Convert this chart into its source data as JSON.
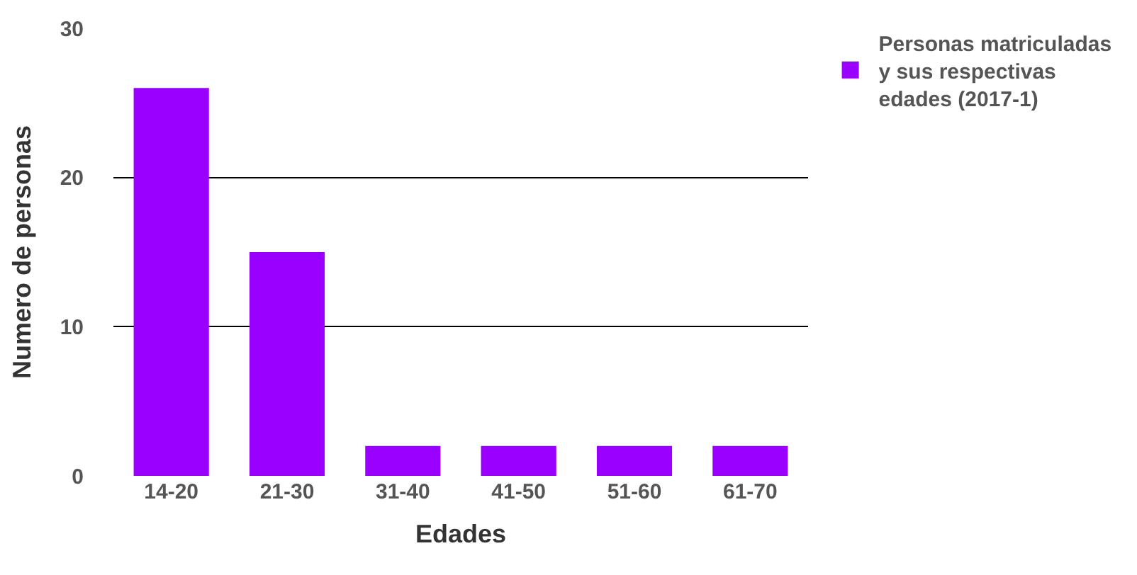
{
  "chart_data": {
    "type": "bar",
    "xlabel": "Edades",
    "ylabel": "Numero de personas",
    "categories": [
      "14-20",
      "21-30",
      "31-40",
      "41-50",
      "51-60",
      "61-70"
    ],
    "series": [
      {
        "name": "Personas matriculadas y sus respectivas edades (2017-1)",
        "color": "#9900ff",
        "values": [
          26,
          15,
          2,
          2,
          2,
          2
        ]
      }
    ],
    "ylim": [
      0,
      30
    ],
    "yticks": [
      0,
      10,
      20,
      30
    ],
    "grid": "y",
    "legend": "top right"
  }
}
